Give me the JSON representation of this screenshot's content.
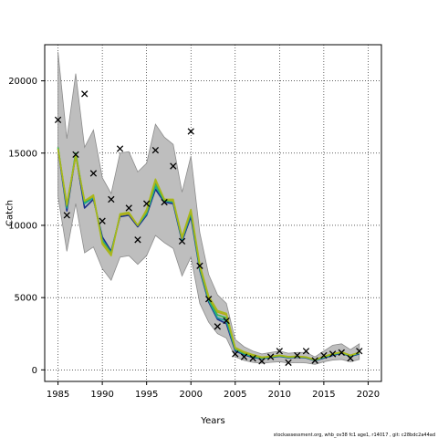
{
  "chart_data": {
    "type": "line",
    "title": "",
    "xlabel": "Years",
    "ylabel": "Catch",
    "xlim": [
      1983.5,
      2021.5
    ],
    "ylim": [
      -800,
      22500
    ],
    "xticks": [
      1985,
      1990,
      1995,
      2000,
      2005,
      2010,
      2015,
      2020
    ],
    "yticks": [
      0,
      5000,
      10000,
      15000,
      20000
    ],
    "grid": true,
    "footnote": "stockassessment.org, whb_ov38 fc1 age1, r14017 , git: c28bdc2a44ad",
    "colors": {
      "band": "#bebebe",
      "band_stroke": "#8c8c8c",
      "observed": "#000000",
      "series": [
        "#1a2e8a",
        "#1aa0a0",
        "#3cb84a",
        "#b8a81a",
        "#a8b81a"
      ]
    },
    "band": {
      "x": [
        1985,
        1986,
        1987,
        1988,
        1989,
        1990,
        1991,
        1992,
        1993,
        1994,
        1995,
        1996,
        1997,
        1998,
        1999,
        2000,
        2001,
        2002,
        2003,
        2004,
        2005,
        2006,
        2007,
        2008,
        2009,
        2010,
        2011,
        2012,
        2013,
        2014,
        2015,
        2016,
        2017,
        2018,
        2019
      ],
      "upper": [
        22000,
        16000,
        20500,
        15400,
        16600,
        13300,
        12200,
        15000,
        15100,
        13700,
        14300,
        17000,
        16100,
        15600,
        12300,
        14800,
        9500,
        6600,
        5200,
        4600,
        2100,
        1600,
        1300,
        1100,
        1200,
        1300,
        1150,
        1200,
        1200,
        900,
        1300,
        1700,
        1800,
        1400,
        1800
      ],
      "lower": [
        12000,
        8200,
        11500,
        8100,
        8500,
        7000,
        6200,
        7800,
        7900,
        7300,
        7900,
        9300,
        8800,
        8400,
        6500,
        7800,
        4600,
        3300,
        2500,
        2200,
        900,
        650,
        520,
        460,
        520,
        560,
        470,
        500,
        480,
        380,
        560,
        680,
        720,
        560,
        720
      ]
    },
    "series": [
      {
        "values": [
          15300,
          11000,
          14900,
          11200,
          11800,
          9200,
          8200,
          10600,
          10700,
          9900,
          10700,
          12500,
          11600,
          11500,
          8900,
          10600,
          6900,
          4700,
          3500,
          3200,
          1300,
          1050,
          850,
          780,
          850,
          940,
          840,
          880,
          830,
          640,
          820,
          1000,
          1150,
          930,
          1100
        ]
      },
      {
        "values": [
          15400,
          11200,
          15000,
          11500,
          11900,
          9000,
          8100,
          10700,
          10800,
          10000,
          10800,
          12700,
          11700,
          11600,
          9000,
          10800,
          7000,
          4800,
          3600,
          3400,
          1400,
          1100,
          900,
          800,
          880,
          960,
          860,
          900,
          850,
          660,
          860,
          1050,
          1180,
          960,
          1150
        ]
      },
      {
        "values": [
          15400,
          11300,
          15000,
          11600,
          12000,
          8900,
          8100,
          10700,
          10800,
          10000,
          10900,
          12900,
          11700,
          11700,
          9100,
          10900,
          7100,
          4900,
          3800,
          3600,
          1450,
          1150,
          950,
          830,
          900,
          980,
          880,
          920,
          870,
          680,
          900,
          1080,
          1200,
          980,
          1180
        ]
      },
      {
        "values": [
          15300,
          11400,
          14800,
          11700,
          12000,
          8800,
          8000,
          10700,
          10800,
          10000,
          11000,
          13100,
          11800,
          11700,
          9100,
          11000,
          7200,
          5000,
          4000,
          3800,
          1500,
          1200,
          1000,
          860,
          920,
          1000,
          900,
          930,
          880,
          690,
          920,
          1100,
          1220,
          1000,
          1200
        ]
      },
      {
        "values": [
          15300,
          11500,
          14800,
          11700,
          12100,
          8700,
          7900,
          10800,
          10900,
          10000,
          11100,
          13200,
          11800,
          11800,
          9200,
          11100,
          7300,
          5100,
          4100,
          3900,
          1550,
          1250,
          1050,
          880,
          930,
          1010,
          910,
          940,
          890,
          700,
          930,
          1110,
          1230,
          1010,
          1210
        ]
      }
    ],
    "observed": {
      "x": [
        1985,
        1986,
        1987,
        1988,
        1989,
        1990,
        1991,
        1992,
        1993,
        1994,
        1995,
        1996,
        1997,
        1998,
        1999,
        2000,
        2001,
        2002,
        2003,
        2004,
        2005,
        2006,
        2007,
        2008,
        2009,
        2010,
        2011,
        2012,
        2013,
        2014,
        2015,
        2016,
        2017,
        2018,
        2019
      ],
      "y": [
        17300,
        10700,
        14900,
        19100,
        13600,
        10300,
        11800,
        15300,
        11200,
        9000,
        11500,
        15200,
        11600,
        14100,
        8900,
        16500,
        7200,
        4900,
        3000,
        3400,
        1100,
        900,
        800,
        600,
        900,
        1300,
        500,
        1000,
        1300,
        650,
        1000,
        1100,
        1200,
        800,
        1300
      ]
    }
  }
}
